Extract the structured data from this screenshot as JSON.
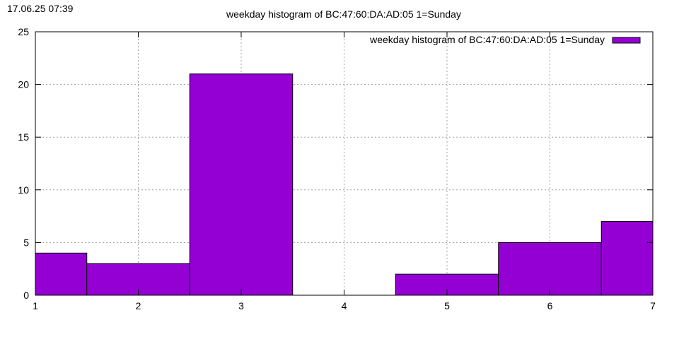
{
  "timestamp": "17.06.25 07:39",
  "chart_data": {
    "type": "bar",
    "title": "weekday histogram of BC:47:60:DA:AD:05 1=Sunday",
    "x_categories": [
      1,
      2,
      3,
      4,
      5,
      6,
      7
    ],
    "series": [
      {
        "name": "weekday histogram of BC:47:60:DA:AD:05 1=Sunday",
        "values": [
          4,
          3,
          21,
          0,
          2,
          5,
          7
        ],
        "color": "#9400d3"
      }
    ],
    "xlim": [
      1,
      7
    ],
    "ylim": [
      0,
      25
    ],
    "x_ticks": [
      "1",
      "2",
      "3",
      "4",
      "5",
      "6",
      "7"
    ],
    "y_ticks": [
      "0",
      "5",
      "10",
      "15",
      "20",
      "25"
    ],
    "bar_width": 1,
    "grid": true,
    "legend_position": "top-right"
  }
}
